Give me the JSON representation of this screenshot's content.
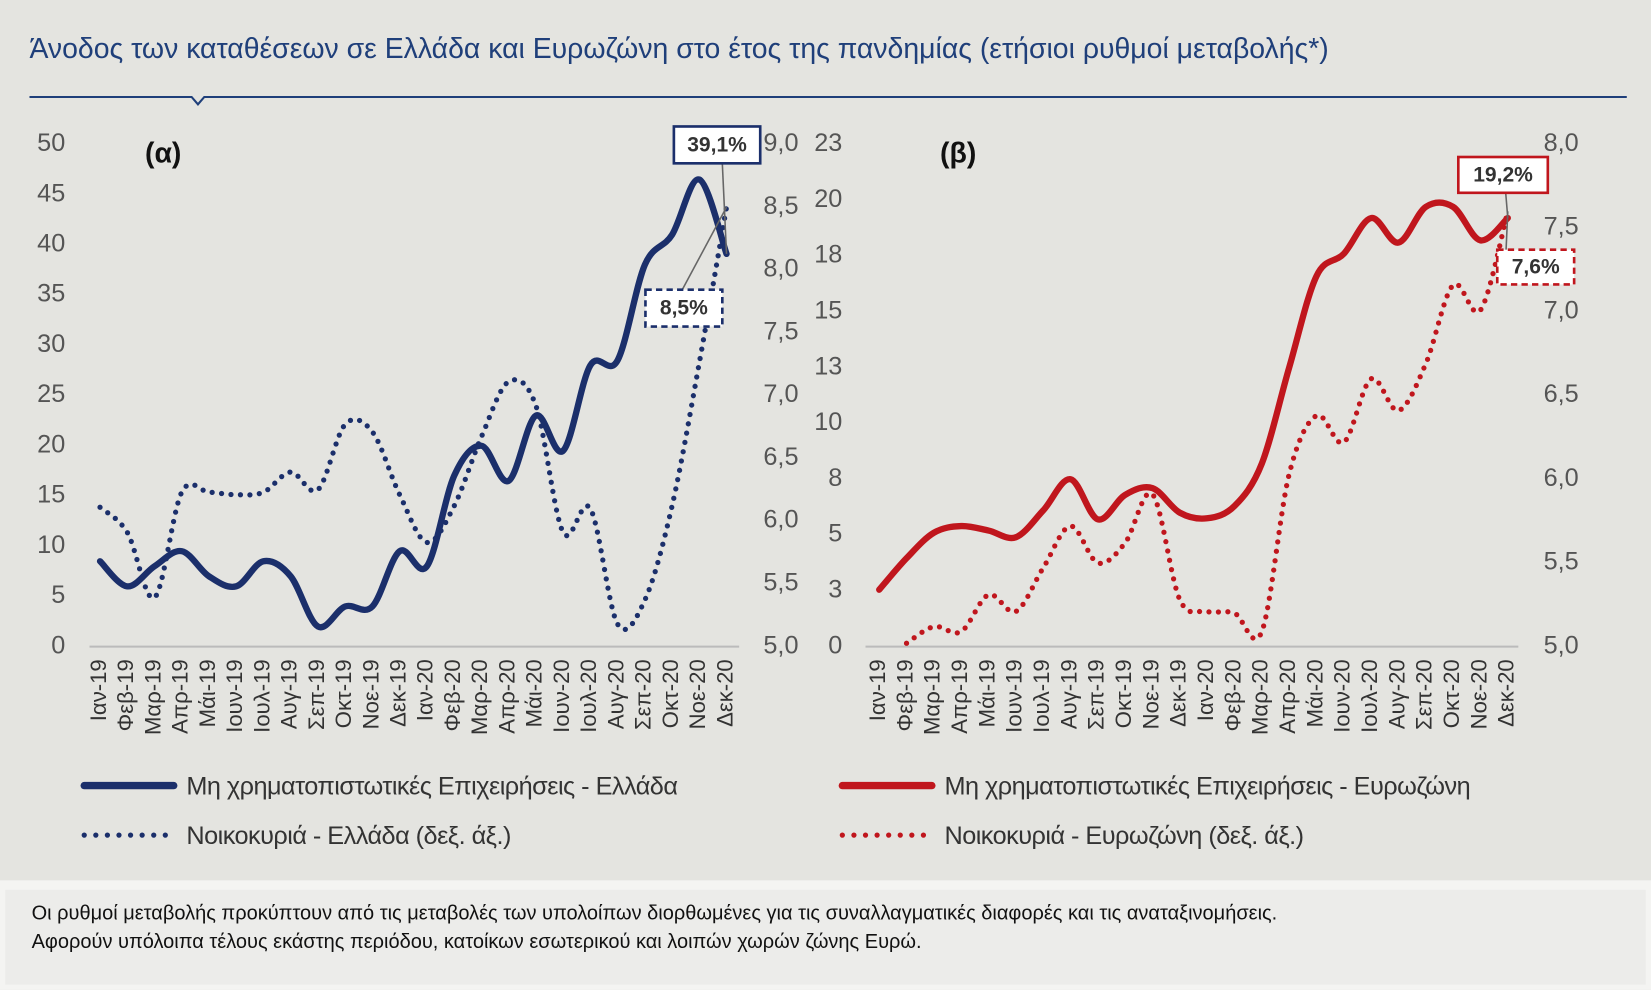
{
  "title": "Άνοδος των καταθέσεων σε Ελλάδα και Ευρωζώνη στο έτος της πανδημίας (ετήσιοι ρυθμοί μεταβολής*)",
  "footnote": [
    "Οι ρυθμοί μεταβολής προκύπτουν  από τις μεταβολές των υπολοίπων διορθωμένες για τις συναλλαγματικές διαφορές και τις αναταξινομήσεις.",
    "Αφορούν υπόλοιπα τέλους εκάστης περιόδου, κατοίκων εσωτερικού και λοιπών χωρών ζώνης Ευρώ."
  ],
  "chart_data": [
    {
      "type": "line",
      "panel_label": "(α)",
      "categories": [
        "Ιαν-19",
        "Φεβ-19",
        "Μαρ-19",
        "Απρ-19",
        "Μάι-19",
        "Ιουν-19",
        "Ιουλ-19",
        "Αυγ-19",
        "Σεπ-19",
        "Οκτ-19",
        "Νοε-19",
        "Δεκ-19",
        "Ιαν-20",
        "Φεβ-20",
        "Μαρ-20",
        "Απρ-20",
        "Μάι-20",
        "Ιουν-20",
        "Ιουλ-20",
        "Αυγ-20",
        "Σεπ-20",
        "Οκτ-20",
        "Νοε-20",
        "Δεκ-20"
      ],
      "ylim": [
        0,
        50
      ],
      "yticks": [
        0,
        5,
        10,
        15,
        20,
        25,
        30,
        35,
        40,
        45,
        50
      ],
      "y2lim": [
        5,
        9
      ],
      "y2ticks": [
        {
          "value": 5,
          "label": "5,0"
        },
        {
          "value": 5.5,
          "label": "5,5"
        },
        {
          "value": 6,
          "label": "6,0"
        },
        {
          "value": 6.5,
          "label": "6,5"
        },
        {
          "value": 7,
          "label": "7,0"
        },
        {
          "value": 7.5,
          "label": "7,5"
        },
        {
          "value": 8,
          "label": "8,0"
        },
        {
          "value": 8.5,
          "label": "8,5"
        },
        {
          "value": 9,
          "label": "9,0"
        }
      ],
      "series": [
        {
          "name": "Μη χρηματοπιστωτικές Επιχειρήσεις - Ελλάδα",
          "color": "#1b2f6b",
          "style": "solid",
          "values": [
            8.5,
            6,
            8,
            9.5,
            7,
            6,
            8.5,
            7,
            2,
            4,
            4,
            9.5,
            8,
            17,
            20,
            16.5,
            23,
            19.5,
            28,
            28.5,
            38,
            41,
            46.5,
            39.1
          ]
        },
        {
          "name": "Νοικοκυριά - Ελλάδα  (δεξ. άξ.)",
          "color": "#1b2f6b",
          "style": "dotted",
          "axis": "y2",
          "values": [
            6.11,
            5.91,
            5.39,
            6.23,
            6.23,
            6.21,
            6.23,
            6.39,
            6.25,
            6.77,
            6.71,
            6.21,
            5.83,
            6.12,
            6.67,
            7.11,
            6.92,
            5.91,
            6.1,
            5.18,
            5.37,
            6.12,
            7.26,
            8.5
          ]
        }
      ],
      "annotations": [
        "39,1%",
        "8,5%"
      ]
    },
    {
      "type": "line",
      "panel_label": "(β)",
      "categories": [
        "Ιαν-19",
        "Φεβ-19",
        "Μαρ-19",
        "Απρ-19",
        "Μάι-19",
        "Ιουν-19",
        "Ιουλ-19",
        "Αυγ-19",
        "Σεπ-19",
        "Οκτ-19",
        "Νοε-19",
        "Δεκ-19",
        "Ιαν-20",
        "Φεβ-20",
        "Μαρ-20",
        "Απρ-20",
        "Μάι-20",
        "Ιουν-20",
        "Ιουλ-20",
        "Αυγ-20",
        "Σεπ-20",
        "Οκτ-20",
        "Νοε-20",
        "Δεκ-20"
      ],
      "ylim": [
        0,
        22.5
      ],
      "yticks": [
        0,
        {
          "value": 2.5,
          "label": "3"
        },
        5,
        {
          "value": 7.5,
          "label": "8"
        },
        10,
        {
          "value": 12.5,
          "label": "13"
        },
        15,
        {
          "value": 17.5,
          "label": "18"
        },
        20,
        {
          "value": 22.5,
          "label": "23"
        }
      ],
      "y2lim": [
        5,
        8
      ],
      "y2ticks": [
        {
          "value": 5,
          "label": "5,0"
        },
        {
          "value": 5.5,
          "label": "5,5"
        },
        {
          "value": 6,
          "label": "6,0"
        },
        {
          "value": 6.5,
          "label": "6,5"
        },
        {
          "value": 7,
          "label": "7,0"
        },
        {
          "value": 7.5,
          "label": "7,5"
        },
        {
          "value": 8,
          "label": "8,0"
        }
      ],
      "series": [
        {
          "name": "Μη χρηματοπιστωτικές Επιχειρήσεις - Ευρωζώνη",
          "color": "#c0161d",
          "style": "solid",
          "values": [
            2.55,
            3.96,
            5.1,
            5.4,
            5.2,
            4.9,
            6.1,
            7.5,
            5.7,
            6.8,
            7.1,
            6.0,
            5.75,
            6.3,
            8.2,
            12.5,
            16.6,
            17.6,
            19.2,
            18.1,
            19.7,
            19.7,
            18.2,
            19.2
          ]
        },
        {
          "name": "Νοικοκυριά - Ευρωζώνη  (δεξ. άξ.)",
          "color": "#c0161d",
          "style": "dotted",
          "axis": "y2",
          "values": [
            null,
            5.02,
            5.12,
            5.09,
            5.31,
            5.21,
            5.47,
            5.72,
            5.5,
            5.62,
            5.91,
            5.28,
            5.21,
            5.2,
            5.09,
            6.03,
            6.38,
            6.22,
            6.6,
            6.41,
            6.69,
            7.16,
            7.01,
            7.6
          ]
        }
      ],
      "annotations": [
        "19,2%",
        "7,6%"
      ]
    }
  ]
}
